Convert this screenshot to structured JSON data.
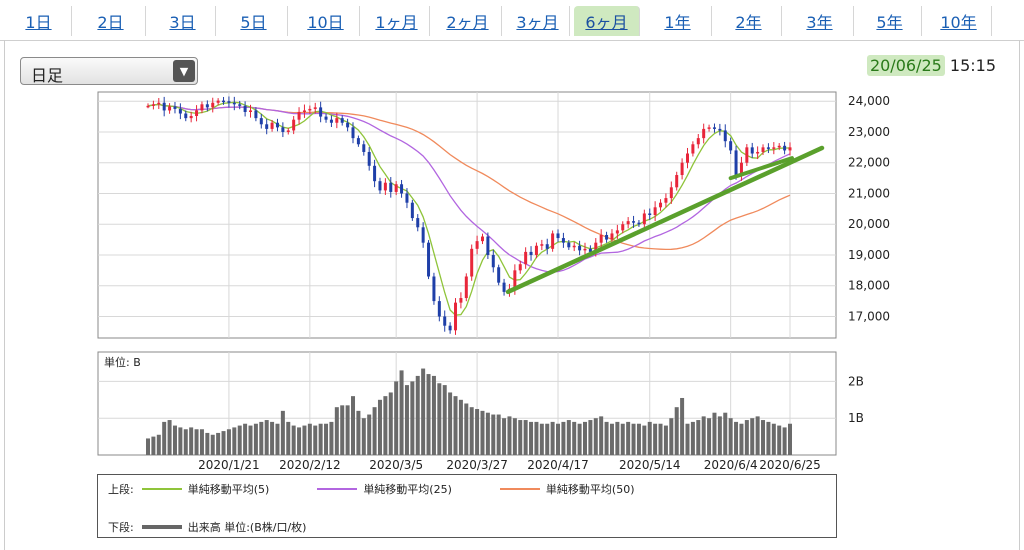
{
  "tabs": [
    {
      "label": "1日",
      "active": false
    },
    {
      "label": "2日",
      "active": false
    },
    {
      "label": "3日",
      "active": false
    },
    {
      "label": "5日",
      "active": false
    },
    {
      "label": "10日",
      "active": false
    },
    {
      "label": "1ヶ月",
      "active": false
    },
    {
      "label": "2ヶ月",
      "active": false
    },
    {
      "label": "3ヶ月",
      "active": false
    },
    {
      "label": "6ヶ月",
      "active": true
    },
    {
      "label": "1年",
      "active": false
    },
    {
      "label": "2年",
      "active": false
    },
    {
      "label": "3年",
      "active": false
    },
    {
      "label": "5年",
      "active": false
    },
    {
      "label": "10年",
      "active": false
    }
  ],
  "interval_select": {
    "value": "日足"
  },
  "timestamp": {
    "date": "20/06/25",
    "time": "15:15"
  },
  "colors": {
    "up": "#e8263a",
    "down": "#1f3fa8",
    "ma5": "#8fc43a",
    "ma25": "#b266e0",
    "ma50": "#f08a5c",
    "trend": "#5aa02c",
    "volume": "#6b6b6b",
    "tab_active": "#cfe9c0"
  },
  "chart_data": {
    "type": "candlestick+volume",
    "price_axis": {
      "ylim": [
        16300,
        24300
      ],
      "ticks": [
        "24,000",
        "23,000",
        "22,000",
        "21,000",
        "20,000",
        "19,000",
        "18,000",
        "17,000"
      ]
    },
    "volume_axis": {
      "unit_label": "単位: B",
      "ylim": [
        0,
        2.8
      ],
      "ticks": [
        "2B",
        "1B"
      ]
    },
    "x_tick_labels": [
      "2020/1/21",
      "2020/2/12",
      "2020/3/5",
      "2020/3/27",
      "2020/4/17",
      "2020/5/14",
      "2020/6/4",
      "2020/6/25"
    ],
    "close": [
      23850,
      23900,
      23950,
      23700,
      23830,
      23750,
      23600,
      23450,
      23520,
      23700,
      23900,
      23800,
      23950,
      24020,
      24000,
      23950,
      23900,
      23850,
      23650,
      23700,
      23450,
      23250,
      23100,
      23300,
      23150,
      23000,
      23050,
      23400,
      23650,
      23700,
      23750,
      23800,
      23500,
      23400,
      23300,
      23450,
      23300,
      23150,
      22800,
      22600,
      22350,
      21900,
      21400,
      21100,
      21350,
      21050,
      21300,
      21000,
      20700,
      20200,
      19900,
      19400,
      18300,
      17500,
      17000,
      16700,
      16550,
      17450,
      17600,
      18300,
      19200,
      19450,
      19600,
      19000,
      18600,
      18100,
      17800,
      17900,
      18500,
      18700,
      19100,
      19000,
      19300,
      19350,
      19200,
      19700,
      19550,
      19400,
      19250,
      19300,
      19150,
      19200,
      19100,
      19400,
      19650,
      19500,
      19700,
      19800,
      20000,
      20100,
      20050,
      20000,
      20350,
      20300,
      20550,
      20700,
      20850,
      21200,
      21600,
      22000,
      22300,
      22600,
      22800,
      23100,
      23150,
      23100,
      23050,
      22700,
      22400,
      21600,
      22000,
      22500,
      22300,
      22350,
      22500,
      22450,
      22500,
      22550,
      22400,
      22500
    ],
    "ma_labels": {
      "upper_prefix": "上段:",
      "ma5": "単純移動平均(5)",
      "ma25": "単純移動平均(25)",
      "ma50": "単純移動平均(50)",
      "lower_prefix": "下段:",
      "volume": "出来高 単位:(B株/口/枚)"
    },
    "volume": [
      0.45,
      0.5,
      0.55,
      0.9,
      0.95,
      0.8,
      0.75,
      0.7,
      0.75,
      0.7,
      0.7,
      0.6,
      0.55,
      0.6,
      0.65,
      0.7,
      0.75,
      0.8,
      0.85,
      0.8,
      0.85,
      0.9,
      0.95,
      0.9,
      0.85,
      1.2,
      0.9,
      0.8,
      0.75,
      0.8,
      0.85,
      0.8,
      0.85,
      0.85,
      0.9,
      1.3,
      1.35,
      1.35,
      1.6,
      1.2,
      1.0,
      1.1,
      1.3,
      1.5,
      1.6,
      1.7,
      2.0,
      2.3,
      1.9,
      2.0,
      2.15,
      2.35,
      2.2,
      2.15,
      1.95,
      1.9,
      1.7,
      1.6,
      1.5,
      1.4,
      1.3,
      1.25,
      1.2,
      1.15,
      1.1,
      1.1,
      1.0,
      1.05,
      1.0,
      0.95,
      0.95,
      0.9,
      0.9,
      0.85,
      0.85,
      0.9,
      0.85,
      0.9,
      0.95,
      0.9,
      0.85,
      0.9,
      0.95,
      1.0,
      1.05,
      0.9,
      0.85,
      0.9,
      0.85,
      0.9,
      0.85,
      0.85,
      0.8,
      0.9,
      0.85,
      0.85,
      0.8,
      1.0,
      1.3,
      1.55,
      0.85,
      0.9,
      0.95,
      1.05,
      1.0,
      1.15,
      1.05,
      1.15,
      1.0,
      0.9,
      0.85,
      0.95,
      1.0,
      1.05,
      0.95,
      0.9,
      0.85,
      0.8,
      0.75,
      0.85
    ]
  }
}
